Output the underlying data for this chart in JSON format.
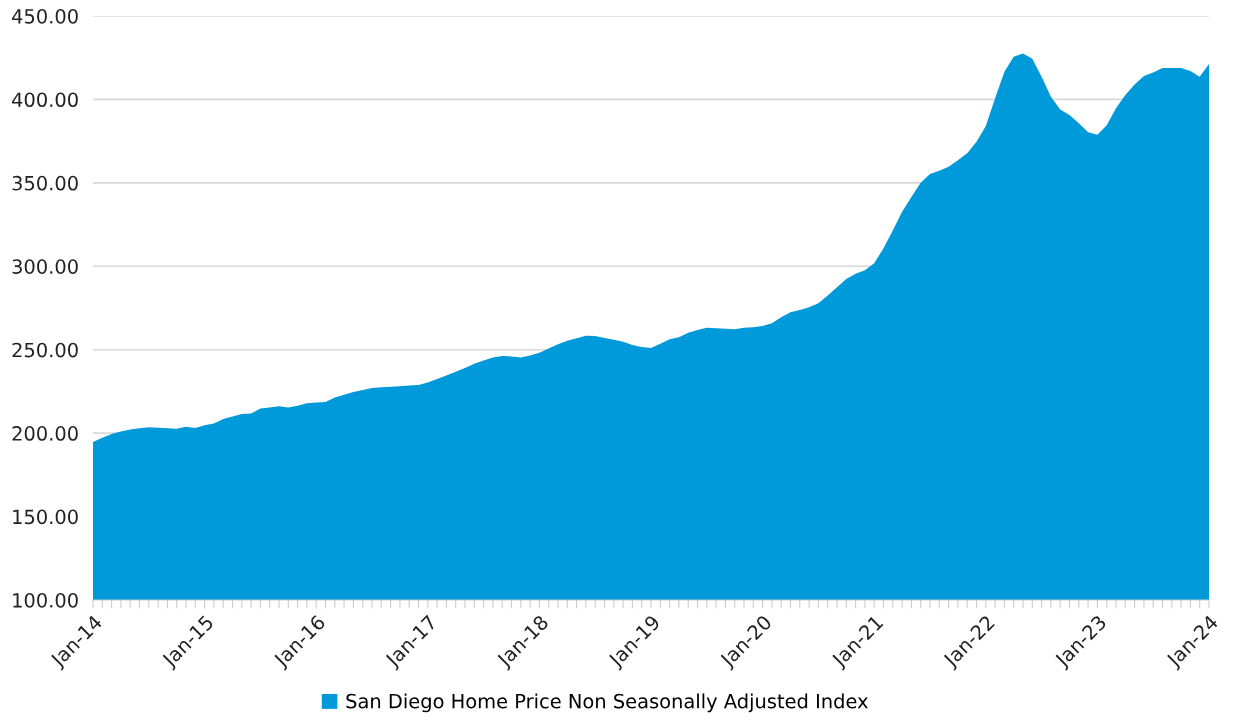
{
  "chart_data": {
    "type": "area",
    "categories": [
      "Jan-14",
      null,
      null,
      null,
      null,
      null,
      null,
      null,
      null,
      null,
      null,
      null,
      "Jan-15",
      null,
      null,
      null,
      null,
      null,
      null,
      null,
      null,
      null,
      null,
      null,
      "Jan-16",
      null,
      null,
      null,
      null,
      null,
      null,
      null,
      null,
      null,
      null,
      null,
      "Jan-17",
      null,
      null,
      null,
      null,
      null,
      null,
      null,
      null,
      null,
      null,
      null,
      "Jan-18",
      null,
      null,
      null,
      null,
      null,
      null,
      null,
      null,
      null,
      null,
      null,
      "Jan-19",
      null,
      null,
      null,
      null,
      null,
      null,
      null,
      null,
      null,
      null,
      null,
      "Jan-20",
      null,
      null,
      null,
      null,
      null,
      null,
      null,
      null,
      null,
      null,
      null,
      "Jan-21",
      null,
      null,
      null,
      null,
      null,
      null,
      null,
      null,
      null,
      null,
      null,
      "Jan-22",
      null,
      null,
      null,
      null,
      null,
      null,
      null,
      null,
      null,
      null,
      null,
      "Jan-23",
      null,
      null,
      null,
      null,
      null,
      null,
      null,
      null,
      null,
      null,
      null,
      "Jan-24"
    ],
    "series": [
      {
        "name": "San Diego Home Price Non Seasonally Adjusted Index",
        "color": "#0099da",
        "values": [
          194.7,
          197.3,
          199.5,
          201.0,
          202.2,
          203.0,
          203.5,
          203.3,
          203.0,
          202.7,
          203.9,
          203.1,
          204.8,
          205.8,
          208.5,
          210.0,
          211.5,
          211.7,
          214.7,
          215.4,
          216.1,
          215.3,
          216.4,
          217.9,
          218.3,
          218.7,
          221.3,
          223.0,
          224.7,
          225.9,
          227.1,
          227.5,
          227.8,
          228.1,
          228.5,
          228.8,
          230.4,
          232.5,
          234.6,
          236.8,
          239.0,
          241.6,
          243.5,
          245.4,
          246.2,
          246.0,
          245.4,
          246.5,
          248.2,
          250.8,
          253.3,
          255.4,
          256.9,
          258.4,
          258.2,
          257.0,
          256.0,
          254.8,
          252.9,
          251.6,
          251.0,
          253.6,
          256.2,
          257.4,
          260.2,
          261.8,
          263.2,
          262.8,
          262.6,
          262.2,
          263.2,
          263.4,
          264.2,
          265.8,
          269.5,
          272.4,
          273.8,
          275.5,
          277.8,
          282.5,
          287.5,
          292.4,
          295.6,
          297.6,
          301.8,
          310.8,
          321.5,
          332.7,
          341.5,
          350.1,
          355.3,
          357.3,
          359.7,
          363.5,
          367.7,
          374.7,
          384.1,
          400.7,
          416.6,
          425.6,
          427.6,
          424.4,
          413.6,
          401.6,
          394.0,
          390.7,
          385.7,
          380.3,
          378.9,
          384.5,
          394.7,
          402.6,
          409.0,
          414.0,
          416.2,
          418.8,
          418.8,
          418.8,
          417.0,
          413.6,
          421.2
        ]
      }
    ],
    "ylim": [
      100,
      450
    ],
    "yticks": [
      {
        "value": 100,
        "label": "100.00"
      },
      {
        "value": 150,
        "label": "150.00"
      },
      {
        "value": 200,
        "label": "200.00"
      },
      {
        "value": 250,
        "label": "250.00"
      },
      {
        "value": 300,
        "label": "300.00"
      },
      {
        "value": 350,
        "label": "350.00"
      },
      {
        "value": 400,
        "label": "400.00"
      },
      {
        "value": 450,
        "label": "450.00"
      }
    ],
    "grid": "y",
    "legend": "bottom"
  }
}
